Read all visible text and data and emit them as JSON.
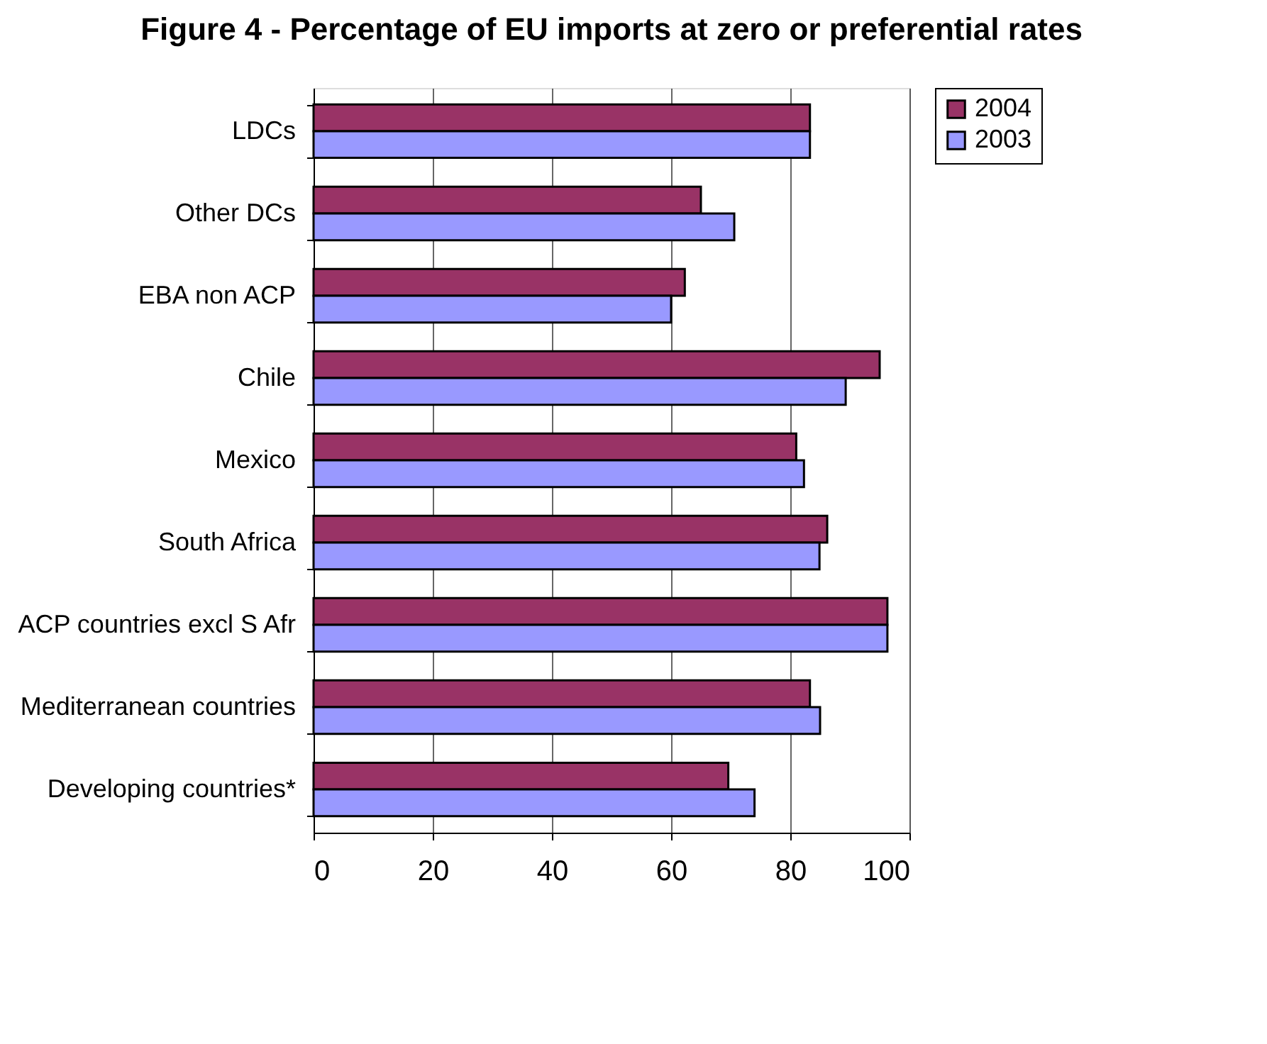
{
  "chart_data": {
    "type": "bar",
    "orientation": "horizontal",
    "title": "Figure 4 - Percentage of EU imports at zero or preferential rates",
    "categories": [
      "LDCs",
      "Other DCs",
      "EBA non ACP",
      "Chile",
      "Mexico",
      "South Africa",
      "ACP countries excl S Afr",
      "Mediterranean countries",
      "Developing countries*"
    ],
    "series": [
      {
        "name": "2004",
        "color": "#993366",
        "values": [
          83.3,
          65,
          62.3,
          95,
          81,
          86.2,
          96.3,
          83.3,
          69.6
        ]
      },
      {
        "name": "2003",
        "color": "#9999ff",
        "values": [
          83.3,
          70.6,
          60,
          89.3,
          82.3,
          84.9,
          96.3,
          85,
          74
        ]
      }
    ],
    "xlim": [
      0,
      100
    ],
    "xticks": [
      0,
      20,
      40,
      60,
      80,
      100
    ],
    "grid": "x",
    "legend": "right"
  }
}
